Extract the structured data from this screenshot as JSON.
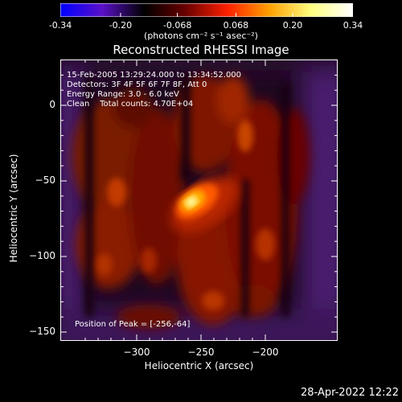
{
  "colorbar": {
    "ticks": [
      "-0.34",
      "-0.20",
      "-0.068",
      "0.068",
      "0.20",
      "0.34"
    ],
    "tick_values": [
      -0.34,
      -0.2,
      -0.068,
      0.068,
      0.2,
      0.34
    ],
    "range": [
      -0.34,
      0.34
    ],
    "units_label": "(photons cm⁻² s⁻¹ asec⁻²)",
    "colors": [
      "#0000ff",
      "#5a10c8",
      "#000000",
      "#6a0000",
      "#ff2000",
      "#ffa000",
      "#ffff80",
      "#ffffff"
    ]
  },
  "chart_data": {
    "type": "heatmap",
    "title": "Reconstructed RHESSI Image",
    "xlabel": "Heliocentric X (arcsec)",
    "ylabel": "Heliocentric Y (arcsec)",
    "xlim": [
      -350,
      -240
    ],
    "ylim": [
      -161,
      35
    ],
    "x_ticks": [
      -300,
      -250,
      -200
    ],
    "y_ticks": [
      0,
      -50,
      -100,
      -150
    ],
    "x_tick_labels": [
      "−300",
      "−250",
      "−200"
    ],
    "y_tick_labels": [
      "0",
      "−50",
      "−100",
      "−150"
    ],
    "peak_position": [
      -256,
      -64
    ],
    "annotations": [
      "15-Feb-2005 13:29:24.000 to 13:34:52.000",
      "Detectors: 3F 4F 5F 6F 7F 8F, Att 0",
      "Energy Range: 3.0 - 6.0 keV",
      "Clean    Total counts: 4.70E+04"
    ],
    "peak_annotation": "Position of Peak = [-256,-64]"
  },
  "timestamp": "28-Apr-2022 12:22"
}
